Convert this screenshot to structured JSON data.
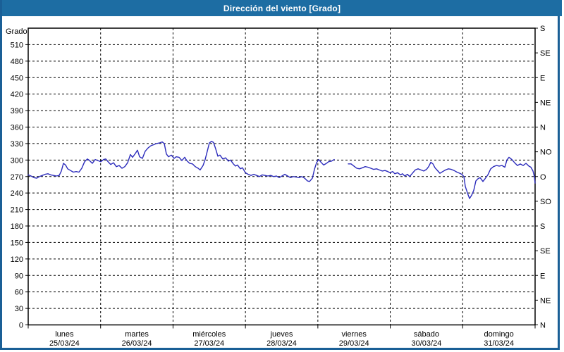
{
  "window": {
    "title": "Dirección del viento [Grado]"
  },
  "colors": {
    "titlebar": "#1d6da3",
    "window_border": "#1a5f96",
    "plot_background": "#ffffff",
    "frame": "#000000",
    "grid": "#000000",
    "series_line": "#2b2bbb",
    "text": "#000000",
    "title_text": "#ffffff"
  },
  "chart_data": {
    "type": "line",
    "title": "Dirección del viento [Grado]",
    "grid": "dashed",
    "legend": "none",
    "y_axis_left": {
      "label": "Grado",
      "unit": "degrees",
      "ylim": [
        0,
        540
      ],
      "tick_step": 30,
      "ticks": [
        0,
        30,
        60,
        90,
        120,
        150,
        180,
        210,
        240,
        270,
        300,
        330,
        360,
        390,
        420,
        450,
        480,
        510
      ]
    },
    "y_axis_right": {
      "unit": "compass",
      "tick_step": 45,
      "ticks": [
        [
          540,
          "S"
        ],
        [
          495,
          "SE"
        ],
        [
          450,
          "E"
        ],
        [
          405,
          "NE"
        ],
        [
          360,
          "N"
        ],
        [
          315,
          "NO"
        ],
        [
          270,
          "O"
        ],
        [
          225,
          "SO"
        ],
        [
          180,
          "S"
        ],
        [
          135,
          "SE"
        ],
        [
          90,
          "E"
        ],
        [
          45,
          "NE"
        ],
        [
          0,
          "N"
        ]
      ]
    },
    "x_axis": {
      "unit": "days",
      "xlim_days": [
        0,
        7
      ],
      "days": [
        {
          "name": "lunes",
          "date": "25/03/24"
        },
        {
          "name": "martes",
          "date": "26/03/24"
        },
        {
          "name": "miércoles",
          "date": "27/03/24"
        },
        {
          "name": "jueves",
          "date": "28/03/24"
        },
        {
          "name": "viernes",
          "date": "29/03/24"
        },
        {
          "name": "sábado",
          "date": "30/03/24"
        },
        {
          "name": "domingo",
          "date": "31/03/24"
        }
      ]
    },
    "series": [
      {
        "name": "Dirección del viento",
        "color": "#2b2bbb",
        "note": "x = days since 25/03/24 00:00, y = degrees; gap = missing data on viernes",
        "segments": [
          [
            [
              0.0,
              273
            ],
            [
              0.039,
              271
            ],
            [
              0.078,
              268
            ],
            [
              0.117,
              267
            ],
            [
              0.156,
              270
            ],
            [
              0.195,
              272
            ],
            [
              0.234,
              274
            ],
            [
              0.273,
              275
            ],
            [
              0.312,
              273
            ],
            [
              0.35,
              272
            ],
            [
              0.389,
              271
            ],
            [
              0.428,
              272
            ],
            [
              0.458,
              280
            ],
            [
              0.487,
              294
            ],
            [
              0.516,
              291
            ],
            [
              0.545,
              284
            ],
            [
              0.584,
              281
            ],
            [
              0.623,
              278
            ],
            [
              0.662,
              279
            ],
            [
              0.701,
              278
            ],
            [
              0.74,
              285
            ],
            [
              0.779,
              297
            ],
            [
              0.818,
              302
            ],
            [
              0.847,
              299
            ],
            [
              0.886,
              294
            ],
            [
              0.925,
              301
            ],
            [
              0.964,
              299
            ],
            [
              1.003,
              297
            ],
            [
              1.042,
              301
            ],
            [
              1.071,
              302
            ],
            [
              1.11,
              296
            ],
            [
              1.139,
              292
            ],
            [
              1.178,
              295
            ],
            [
              1.217,
              288
            ],
            [
              1.256,
              290
            ],
            [
              1.295,
              285
            ],
            [
              1.334,
              288
            ],
            [
              1.373,
              295
            ],
            [
              1.412,
              310
            ],
            [
              1.441,
              305
            ],
            [
              1.48,
              312
            ],
            [
              1.509,
              318
            ],
            [
              1.538,
              306
            ],
            [
              1.577,
              303
            ],
            [
              1.616,
              316
            ],
            [
              1.655,
              322
            ],
            [
              1.694,
              326
            ],
            [
              1.733,
              328
            ],
            [
              1.772,
              330
            ],
            [
              1.811,
              331
            ],
            [
              1.85,
              333
            ],
            [
              1.879,
              330
            ],
            [
              1.908,
              311
            ],
            [
              1.937,
              306
            ],
            [
              1.976,
              309
            ],
            [
              2.015,
              303
            ],
            [
              2.044,
              306
            ],
            [
              2.083,
              305
            ],
            [
              2.122,
              299
            ],
            [
              2.161,
              305
            ],
            [
              2.19,
              299
            ],
            [
              2.229,
              294
            ],
            [
              2.268,
              293
            ],
            [
              2.307,
              288
            ],
            [
              2.346,
              285
            ],
            [
              2.375,
              282
            ],
            [
              2.414,
              290
            ],
            [
              2.444,
              301
            ],
            [
              2.473,
              316
            ],
            [
              2.502,
              331
            ],
            [
              2.531,
              334
            ],
            [
              2.56,
              332
            ],
            [
              2.59,
              320
            ],
            [
              2.619,
              307
            ],
            [
              2.648,
              309
            ],
            [
              2.687,
              302
            ],
            [
              2.726,
              304
            ],
            [
              2.765,
              298
            ],
            [
              2.794,
              300
            ],
            [
              2.833,
              293
            ],
            [
              2.862,
              289
            ],
            [
              2.891,
              291
            ],
            [
              2.93,
              284
            ],
            [
              2.96,
              286
            ],
            [
              2.999,
              277
            ],
            [
              3.038,
              274
            ],
            [
              3.077,
              272
            ],
            [
              3.115,
              274
            ],
            [
              3.154,
              272
            ],
            [
              3.193,
              270
            ],
            [
              3.232,
              273
            ],
            [
              3.271,
              272
            ],
            [
              3.31,
              271
            ],
            [
              3.349,
              272
            ],
            [
              3.388,
              270
            ],
            [
              3.427,
              271
            ],
            [
              3.466,
              268
            ],
            [
              3.505,
              271
            ],
            [
              3.544,
              274
            ],
            [
              3.583,
              271
            ],
            [
              3.622,
              268
            ],
            [
              3.661,
              270
            ],
            [
              3.7,
              269
            ],
            [
              3.739,
              268
            ],
            [
              3.778,
              270
            ],
            [
              3.817,
              267
            ],
            [
              3.856,
              262
            ],
            [
              3.885,
              261
            ],
            [
              3.924,
              267
            ],
            [
              3.953,
              283
            ],
            [
              3.982,
              295
            ],
            [
              4.011,
              301
            ],
            [
              4.05,
              295
            ],
            [
              4.08,
              291
            ],
            [
              4.119,
              294
            ],
            [
              4.148,
              297
            ],
            [
              4.187,
              298
            ],
            [
              4.226,
              301
            ]
          ],
          [
            [
              4.42,
              293
            ],
            [
              4.459,
              293
            ],
            [
              4.498,
              289
            ],
            [
              4.537,
              285
            ],
            [
              4.576,
              284
            ],
            [
              4.615,
              286
            ],
            [
              4.654,
              288
            ],
            [
              4.693,
              287
            ],
            [
              4.732,
              285
            ],
            [
              4.771,
              283
            ],
            [
              4.81,
              284
            ],
            [
              4.849,
              282
            ],
            [
              4.888,
              280
            ],
            [
              4.927,
              281
            ],
            [
              4.966,
              279
            ],
            [
              4.995,
              277
            ],
            [
              5.034,
              279
            ],
            [
              5.063,
              275
            ],
            [
              5.102,
              277
            ],
            [
              5.141,
              273
            ],
            [
              5.17,
              275
            ],
            [
              5.199,
              271
            ],
            [
              5.238,
              274
            ],
            [
              5.267,
              270
            ],
            [
              5.306,
              276
            ],
            [
              5.345,
              282
            ],
            [
              5.384,
              284
            ],
            [
              5.423,
              282
            ],
            [
              5.462,
              280
            ],
            [
              5.501,
              283
            ],
            [
              5.53,
              288
            ],
            [
              5.56,
              296
            ],
            [
              5.589,
              293
            ],
            [
              5.618,
              286
            ],
            [
              5.657,
              280
            ],
            [
              5.686,
              276
            ],
            [
              5.725,
              279
            ],
            [
              5.764,
              282
            ],
            [
              5.803,
              284
            ],
            [
              5.842,
              283
            ],
            [
              5.881,
              281
            ],
            [
              5.92,
              278
            ],
            [
              5.959,
              276
            ],
            [
              5.988,
              274
            ],
            [
              6.017,
              270
            ],
            [
              6.036,
              252
            ],
            [
              6.066,
              240
            ],
            [
              6.095,
              230
            ],
            [
              6.124,
              236
            ],
            [
              6.153,
              245
            ],
            [
              6.182,
              262
            ],
            [
              6.211,
              266
            ],
            [
              6.241,
              268
            ],
            [
              6.28,
              261
            ],
            [
              6.309,
              266
            ],
            [
              6.348,
              273
            ],
            [
              6.387,
              284
            ],
            [
              6.426,
              288
            ],
            [
              6.465,
              290
            ],
            [
              6.504,
              289
            ],
            [
              6.543,
              290
            ],
            [
              6.582,
              287
            ],
            [
              6.611,
              300
            ],
            [
              6.64,
              305
            ],
            [
              6.679,
              301
            ],
            [
              6.718,
              295
            ],
            [
              6.757,
              290
            ],
            [
              6.796,
              293
            ],
            [
              6.835,
              290
            ],
            [
              6.874,
              294
            ],
            [
              6.913,
              289
            ],
            [
              6.942,
              287
            ],
            [
              6.971,
              280
            ],
            [
              6.99,
              270
            ],
            [
              7.0,
              258
            ]
          ]
        ]
      }
    ]
  }
}
